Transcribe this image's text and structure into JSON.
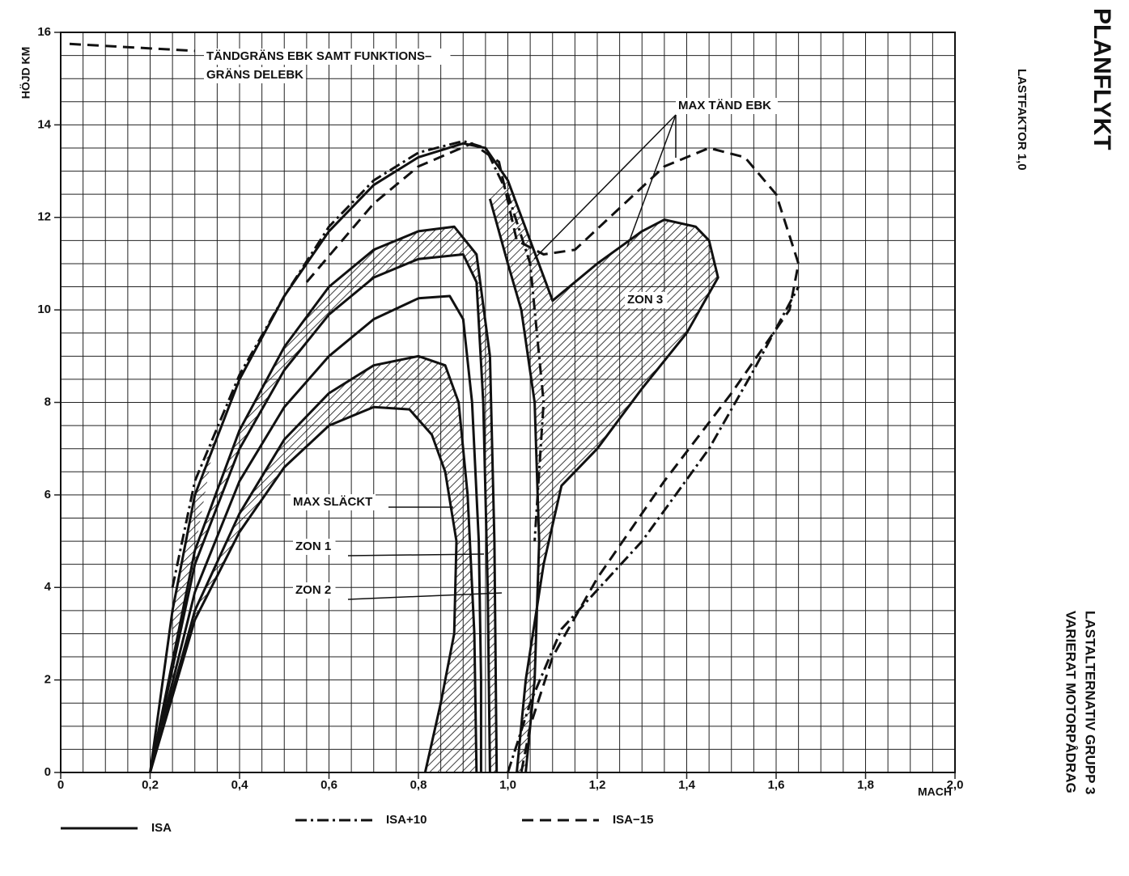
{
  "chart_data": {
    "type": "line",
    "x_label": "MACH",
    "y_label": "HÖJD KM",
    "xlim": [
      0,
      2
    ],
    "ylim": [
      0,
      16
    ],
    "xticks": [
      0,
      {
        "value": 0.2,
        "label": "0,2"
      },
      {
        "value": 0.4,
        "label": "0,4"
      },
      {
        "value": 0.6,
        "label": "0,6"
      },
      {
        "value": 0.8,
        "label": "0,8"
      },
      {
        "value": 1,
        "label": "1,0"
      },
      {
        "value": 1.2,
        "label": "1,2"
      },
      {
        "value": 1.4,
        "label": "1,4"
      },
      {
        "value": 1.6,
        "label": "1,6"
      },
      {
        "value": 1.8,
        "label": "1,8"
      },
      {
        "value": 2,
        "label": "2,0"
      }
    ],
    "yticks": [
      0,
      2,
      4,
      6,
      8,
      10,
      12,
      14,
      16
    ],
    "grid": true,
    "grid_step": [
      0.05,
      0.5
    ],
    "series": [
      {
        "name": "ISA",
        "color": "#111111",
        "dash": "none",
        "curves": [
          {
            "x": [
              0.2,
              0.3,
              0.4,
              0.5,
              0.6,
              0.7,
              0.78,
              0.83,
              0.86,
              0.885,
              0.88,
              0.85,
              0.815
            ],
            "values": [
              0,
              3.3,
              5.2,
              6.6,
              7.5,
              7.9,
              7.85,
              7.3,
              6.5,
              5,
              3,
              1.5,
              0
            ]
          },
          {
            "x": [
              0.2,
              0.3,
              0.4,
              0.5,
              0.6,
              0.7,
              0.8,
              0.86,
              0.89,
              0.91,
              0.925,
              0.93
            ],
            "values": [
              0,
              3.5,
              5.6,
              7.2,
              8.2,
              8.8,
              9.0,
              8.8,
              8,
              6,
              3,
              0
            ]
          },
          {
            "x": [
              0.2,
              0.3,
              0.4,
              0.5,
              0.6,
              0.7,
              0.8,
              0.87,
              0.9,
              0.92,
              0.935,
              0.94,
              0.94
            ],
            "values": [
              0,
              3.9,
              6.3,
              7.9,
              9.0,
              9.8,
              10.25,
              10.3,
              9.8,
              8,
              5,
              2,
              0
            ]
          },
          {
            "x": [
              0.2,
              0.3,
              0.4,
              0.5,
              0.6,
              0.7,
              0.8,
              0.9,
              0.93,
              0.945,
              0.955,
              0.96
            ],
            "values": [
              0,
              4.5,
              7,
              8.7,
              9.9,
              10.7,
              11.1,
              11.2,
              10.6,
              8,
              4,
              0
            ]
          },
          {
            "x": [
              0.2,
              0.3,
              0.4,
              0.5,
              0.6,
              0.7,
              0.8,
              0.88,
              0.93,
              0.96,
              0.97,
              0.975
            ],
            "values": [
              0,
              4.8,
              7.4,
              9.2,
              10.5,
              11.3,
              11.7,
              11.8,
              11.2,
              9,
              5,
              0
            ]
          },
          {
            "x": [
              0.2,
              0.25,
              0.3,
              0.4,
              0.5,
              0.6,
              0.7,
              0.8,
              0.9,
              0.95,
              1.0,
              1.05,
              1.1,
              1.2,
              1.3,
              1.35,
              1.42,
              1.45,
              1.47,
              1.4,
              1.3,
              1.2,
              1.12,
              1.08,
              1.04,
              1.02
            ],
            "values": [
              0,
              3.5,
              6,
              8.5,
              10.3,
              11.7,
              12.7,
              13.3,
              13.6,
              13.5,
              12.8,
              11.5,
              10.2,
              11,
              11.7,
              11.95,
              11.8,
              11.5,
              10.7,
              9.5,
              8.3,
              7,
              6.2,
              4.5,
              2,
              0
            ]
          },
          {
            "x": [
              0.96,
              1.0,
              1.03,
              1.06,
              1.07,
              1.06,
              1.04
            ],
            "values": [
              12.4,
              11,
              10,
              8,
              5,
              2,
              0
            ]
          }
        ]
      },
      {
        "name": "ISA+10",
        "color": "#111111",
        "dash": "14 5 3 5",
        "curves": [
          {
            "x": [
              0.25,
              0.3,
              0.4,
              0.5,
              0.6,
              0.7,
              0.8,
              0.9,
              0.95,
              1.0,
              1.05,
              1.08,
              1.06
            ],
            "values": [
              4,
              6.3,
              8.6,
              10.3,
              11.8,
              12.8,
              13.4,
              13.65,
              13.5,
              12.5,
              11,
              8,
              5
            ]
          },
          {
            "x": [
              1.0,
              1.05,
              1.12,
              1.3,
              1.45,
              1.55,
              1.65
            ],
            "values": [
              0,
              1.5,
              3.1,
              5,
              7,
              8.7,
              10.5
            ]
          }
        ]
      },
      {
        "name": "ISA−15",
        "color": "#111111",
        "dash": "14 8",
        "curves": [
          {
            "x": [
              0.02,
              0.3
            ],
            "values": [
              15.75,
              15.6
            ]
          },
          {
            "x": [
              0.55,
              0.7,
              0.8,
              0.92,
              0.98,
              1.02,
              1.08,
              1.15,
              1.25,
              1.35,
              1.45,
              1.53,
              1.6,
              1.65,
              1.63,
              1.5,
              1.35,
              1.2,
              1.1,
              1.05,
              1.03
            ],
            "values": [
              10.6,
              12.3,
              13.1,
              13.6,
              13.2,
              11.5,
              11.2,
              11.3,
              12.2,
              13.1,
              13.5,
              13.3,
              12.5,
              11,
              10,
              8.2,
              6.3,
              4.2,
              2.5,
              1,
              0
            ]
          }
        ]
      }
    ],
    "zones": [
      {
        "x": [
          0.2,
          0.3,
          0.4,
          0.5,
          0.6,
          0.7,
          0.8,
          0.86,
          0.89,
          0.91,
          0.925,
          0.93,
          0.815,
          0.85,
          0.88,
          0.885,
          0.86,
          0.83,
          0.78,
          0.7,
          0.6,
          0.5,
          0.4,
          0.3
        ],
        "values": [
          0,
          3.5,
          5.6,
          7.2,
          8.2,
          8.8,
          9.0,
          8.8,
          8,
          6,
          3,
          0,
          0,
          1.5,
          3,
          5,
          6.5,
          7.3,
          7.85,
          7.9,
          7.5,
          6.6,
          5.2,
          3.3
        ]
      },
      {
        "x": [
          0.2,
          0.3,
          0.4,
          0.5,
          0.6,
          0.7,
          0.8,
          0.88,
          0.93,
          0.96,
          0.97,
          0.975,
          0.96,
          0.955,
          0.945,
          0.93,
          0.9,
          0.8,
          0.7,
          0.6,
          0.5,
          0.4,
          0.3
        ],
        "values": [
          0,
          4.8,
          7.4,
          9.2,
          10.5,
          11.3,
          11.7,
          11.8,
          11.2,
          9,
          5,
          0,
          0,
          4,
          8,
          10.6,
          11.2,
          11.1,
          10.7,
          9.9,
          8.7,
          7,
          4.5
        ]
      },
      {
        "x": [
          0.96,
          1.0,
          1.05,
          1.1,
          1.2,
          1.3,
          1.35,
          1.42,
          1.45,
          1.47,
          1.4,
          1.3,
          1.2,
          1.12,
          1.08,
          1.04,
          1.02,
          1.04,
          1.06,
          1.07,
          1.06,
          1.03,
          1.0
        ],
        "values": [
          12.4,
          12.8,
          11.5,
          10.2,
          11,
          11.7,
          11.95,
          11.8,
          11.5,
          10.7,
          9.5,
          8.3,
          7,
          6.2,
          4.5,
          2,
          0,
          0,
          2,
          5,
          8,
          10,
          11
        ]
      },
      {
        "x": [
          0.25,
          0.3,
          0.35,
          0.3,
          0.25
        ],
        "values": [
          3.5,
          6,
          7.5,
          4.8,
          2
        ]
      }
    ],
    "annotations": [
      "TÄNDGRÄNS EBK SAMT FUNKTIONS–",
      "GRÄNS DELEBK",
      "MAX TÄND EBK",
      "MAX SLÄCKT",
      "ZON 1",
      "ZON 2",
      "ZON 3"
    ],
    "side_texts": [
      "PLANFLYKT",
      "LASTFAKTOR 1,0",
      "LASTALTERNATIV GRUPP 3",
      "VARIERAT MOTORPÅDRAG"
    ]
  }
}
